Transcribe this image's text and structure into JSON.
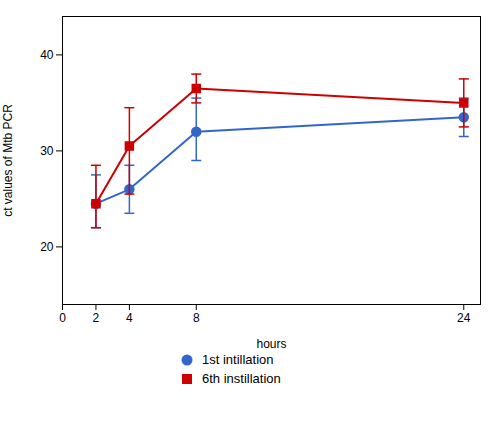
{
  "chart_data": {
    "type": "line",
    "xlabel": "hours",
    "ylabel": "ct values of Mtb PCR",
    "x": [
      2,
      4,
      8,
      24
    ],
    "xlim": [
      0,
      25
    ],
    "xticks": [
      0,
      2,
      4,
      8,
      24
    ],
    "ylim": [
      14,
      44
    ],
    "yticks": [
      20,
      30,
      40
    ],
    "grid": false,
    "legend": "bottom",
    "series": [
      {
        "name": "1st intillation",
        "color": "#3366cc",
        "marker": "circle",
        "line_style": "solid",
        "values": [
          24.5,
          26.0,
          32.0,
          33.5
        ],
        "yerr_lower": [
          2.5,
          2.5,
          3.0,
          2.0
        ],
        "yerr_upper": [
          3.0,
          2.5,
          3.5,
          2.0
        ]
      },
      {
        "name": "6th instillation",
        "color": "#cc0000",
        "marker": "square",
        "line_style": "solid",
        "values": [
          24.5,
          30.5,
          36.5,
          35.0
        ],
        "yerr_lower": [
          2.5,
          5.0,
          1.5,
          2.5
        ],
        "yerr_upper": [
          4.0,
          4.0,
          1.5,
          2.5
        ]
      }
    ]
  }
}
